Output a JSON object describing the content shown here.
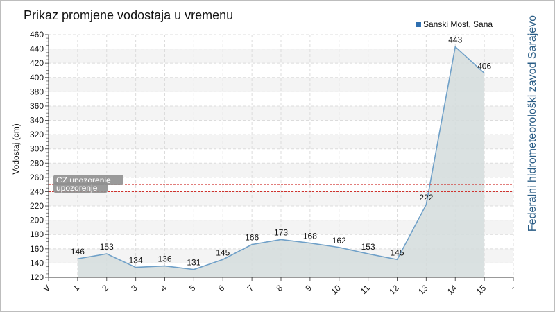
{
  "chart_data": {
    "type": "area",
    "title": "Prikaz promjene vodostaja u vremenu",
    "ylabel": "Vodostaj (cm)",
    "xlabel": "",
    "ylim": [
      120,
      460
    ],
    "yticks": [
      120,
      140,
      160,
      180,
      200,
      220,
      240,
      260,
      280,
      300,
      320,
      340,
      360,
      380,
      400,
      420,
      440,
      460
    ],
    "x_tick_labels": [
      "V",
      "1",
      "2",
      "3",
      "4",
      "5",
      "6",
      "7",
      "8",
      "9",
      "10",
      "11",
      "12",
      "13",
      "14",
      "15",
      "-"
    ],
    "categories": [
      "1",
      "2",
      "3",
      "4",
      "5",
      "6",
      "7",
      "8",
      "9",
      "10",
      "11",
      "12",
      "13",
      "14",
      "15"
    ],
    "series": [
      {
        "name": "Sanski Most, Sana",
        "values": [
          146,
          153,
          134,
          136,
          131,
          145,
          166,
          173,
          168,
          162,
          153,
          145,
          222,
          443,
          406
        ],
        "color": "#6fa0c8",
        "fill": "#d3dcdc"
      }
    ],
    "thresholds": [
      {
        "label": "CZ upozorenje",
        "value": 250,
        "color": "#d0322d"
      },
      {
        "label": "upozorenje",
        "value": 240,
        "color": "#d0322d"
      }
    ],
    "grid": true,
    "legend_position": "top-right",
    "credit": "Federalni hidrometeorološki zavod Sarajevo"
  }
}
